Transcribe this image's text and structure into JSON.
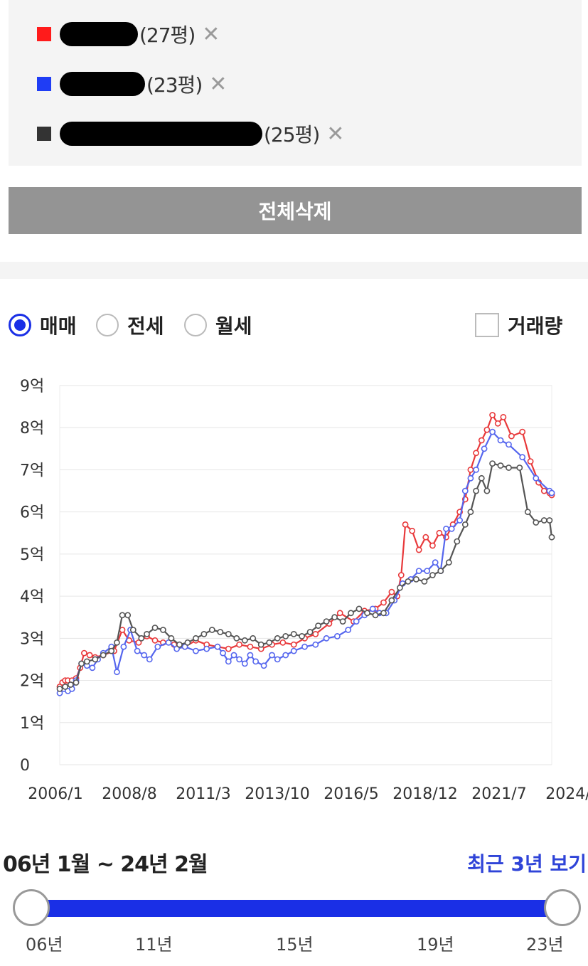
{
  "compare": {
    "items": [
      {
        "label": "(27평)",
        "color": "#ff1b1b",
        "remove": "✕"
      },
      {
        "label": "(23평)",
        "color": "#1f3df5",
        "remove": "✕"
      },
      {
        "label": "(25평)",
        "color": "#333333",
        "remove": "✕"
      }
    ],
    "delete_all": "전체삭제"
  },
  "filters": {
    "options": [
      "매매",
      "전세",
      "월세"
    ],
    "selected": "매매",
    "volume_label": "거래량",
    "volume_checked": false
  },
  "chart_data": {
    "type": "line",
    "ylabel": "",
    "y_ticks": [
      "0",
      "1억",
      "2억",
      "3억",
      "4억",
      "5억",
      "6억",
      "7억",
      "8억",
      "9억"
    ],
    "ylim": [
      0,
      9
    ],
    "x_ticks": [
      "2006/1",
      "2008/8",
      "2011/3",
      "2013/10",
      "2016/5",
      "2018/12",
      "2021/7",
      "2024/2"
    ],
    "xlim": [
      2006.0,
      2024.08
    ],
    "grid": true,
    "series": [
      {
        "name": "(27평)",
        "color": "#e8393b",
        "x": [
          2006.0,
          2006.1,
          2006.2,
          2006.3,
          2006.45,
          2006.6,
          2006.75,
          2006.9,
          2007.1,
          2007.3,
          2007.6,
          2008.0,
          2008.3,
          2008.55,
          2008.9,
          2009.2,
          2009.5,
          2009.8,
          2010.2,
          2010.6,
          2011.0,
          2011.4,
          2011.8,
          2012.2,
          2012.6,
          2013.0,
          2013.4,
          2013.8,
          2014.2,
          2014.6,
          2015.0,
          2015.4,
          2015.9,
          2016.3,
          2016.8,
          2017.2,
          2017.6,
          2017.9,
          2018.2,
          2018.4,
          2018.55,
          2018.7,
          2018.95,
          2019.2,
          2019.45,
          2019.7,
          2019.95,
          2020.2,
          2020.45,
          2020.7,
          2020.9,
          2021.1,
          2021.3,
          2021.5,
          2021.7,
          2021.9,
          2022.1,
          2022.3,
          2022.6,
          2023.0,
          2023.3,
          2023.6,
          2023.8,
          2024.0,
          2024.08
        ],
        "y": [
          1.85,
          1.95,
          2.0,
          2.0,
          2.0,
          2.05,
          2.3,
          2.65,
          2.6,
          2.55,
          2.6,
          2.7,
          3.2,
          2.95,
          2.9,
          3.05,
          2.95,
          2.9,
          2.85,
          2.8,
          2.95,
          2.85,
          2.8,
          2.75,
          2.85,
          2.8,
          2.75,
          2.85,
          2.9,
          2.85,
          3.0,
          3.1,
          3.35,
          3.6,
          3.4,
          3.65,
          3.7,
          3.85,
          4.1,
          4.0,
          4.5,
          5.7,
          5.55,
          5.1,
          5.4,
          5.2,
          5.5,
          5.4,
          5.7,
          6.0,
          6.3,
          7.0,
          7.4,
          7.7,
          7.95,
          8.3,
          8.1,
          8.25,
          7.8,
          7.9,
          7.2,
          6.7,
          6.5,
          6.45,
          6.4
        ]
      },
      {
        "name": "(23평)",
        "color": "#5566ee",
        "x": [
          2006.0,
          2006.15,
          2006.3,
          2006.45,
          2006.6,
          2006.8,
          2007.0,
          2007.2,
          2007.4,
          2007.6,
          2007.9,
          2008.1,
          2008.35,
          2008.6,
          2008.85,
          2009.1,
          2009.3,
          2009.6,
          2010.0,
          2010.3,
          2010.6,
          2011.0,
          2011.4,
          2011.8,
          2012.0,
          2012.2,
          2012.4,
          2012.6,
          2012.8,
          2013.0,
          2013.2,
          2013.5,
          2013.8,
          2014.0,
          2014.3,
          2014.6,
          2015.0,
          2015.4,
          2015.8,
          2016.2,
          2016.6,
          2016.9,
          2017.2,
          2017.5,
          2017.75,
          2018.0,
          2018.3,
          2018.6,
          2018.9,
          2019.2,
          2019.5,
          2019.8,
          2020.0,
          2020.2,
          2020.4,
          2020.7,
          2020.9,
          2021.1,
          2021.3,
          2021.6,
          2021.9,
          2022.2,
          2022.5,
          2023.0,
          2023.5,
          2024.0,
          2024.08
        ],
        "y": [
          1.7,
          1.8,
          1.75,
          1.8,
          2.0,
          2.4,
          2.35,
          2.3,
          2.5,
          2.65,
          2.8,
          2.2,
          2.8,
          3.2,
          2.7,
          2.6,
          2.5,
          2.8,
          2.9,
          2.75,
          2.8,
          2.7,
          2.75,
          2.8,
          2.65,
          2.45,
          2.6,
          2.5,
          2.4,
          2.6,
          2.45,
          2.35,
          2.6,
          2.5,
          2.6,
          2.7,
          2.8,
          2.85,
          3.0,
          3.05,
          3.2,
          3.4,
          3.55,
          3.7,
          3.6,
          3.6,
          3.9,
          4.3,
          4.4,
          4.6,
          4.6,
          4.8,
          4.6,
          5.6,
          5.6,
          5.8,
          6.5,
          6.8,
          7.0,
          7.5,
          7.9,
          7.7,
          7.6,
          7.3,
          6.8,
          6.5,
          6.45
        ]
      },
      {
        "name": "(25평)",
        "color": "#555555",
        "x": [
          2006.0,
          2006.2,
          2006.4,
          2006.6,
          2006.8,
          2007.0,
          2007.3,
          2007.6,
          2007.9,
          2008.1,
          2008.3,
          2008.5,
          2008.7,
          2009.0,
          2009.2,
          2009.5,
          2009.8,
          2010.1,
          2010.4,
          2010.7,
          2011.0,
          2011.3,
          2011.6,
          2011.9,
          2012.2,
          2012.5,
          2012.8,
          2013.1,
          2013.4,
          2013.7,
          2014.0,
          2014.3,
          2014.6,
          2014.9,
          2015.2,
          2015.5,
          2015.8,
          2016.1,
          2016.4,
          2016.7,
          2017.0,
          2017.3,
          2017.6,
          2017.9,
          2018.2,
          2018.5,
          2018.8,
          2019.1,
          2019.4,
          2019.7,
          2020.0,
          2020.3,
          2020.6,
          2020.9,
          2021.1,
          2021.3,
          2021.5,
          2021.7,
          2021.9,
          2022.2,
          2022.5,
          2022.9,
          2023.2,
          2023.5,
          2023.8,
          2024.0,
          2024.08
        ],
        "y": [
          1.8,
          1.85,
          1.9,
          1.95,
          2.4,
          2.45,
          2.5,
          2.6,
          2.7,
          2.9,
          3.55,
          3.55,
          3.2,
          3.0,
          3.1,
          3.25,
          3.2,
          3.0,
          2.85,
          2.9,
          3.0,
          3.1,
          3.2,
          3.15,
          3.1,
          3.0,
          2.95,
          3.0,
          2.85,
          2.9,
          3.0,
          3.05,
          3.1,
          3.05,
          3.15,
          3.3,
          3.4,
          3.5,
          3.4,
          3.6,
          3.7,
          3.6,
          3.55,
          3.6,
          3.9,
          4.2,
          4.35,
          4.4,
          4.35,
          4.5,
          4.6,
          4.8,
          5.3,
          5.7,
          6.0,
          6.5,
          6.8,
          6.5,
          7.15,
          7.1,
          7.05,
          7.05,
          6.0,
          5.75,
          5.8,
          5.8,
          5.4
        ]
      }
    ]
  },
  "range": {
    "text": "06년 1월 ~ 24년 2월",
    "recent_link": "최근 3년 보기",
    "ticks": [
      "06년",
      "11년",
      "15년",
      "19년",
      "23년"
    ],
    "start_value": 0,
    "end_value": 1
  }
}
